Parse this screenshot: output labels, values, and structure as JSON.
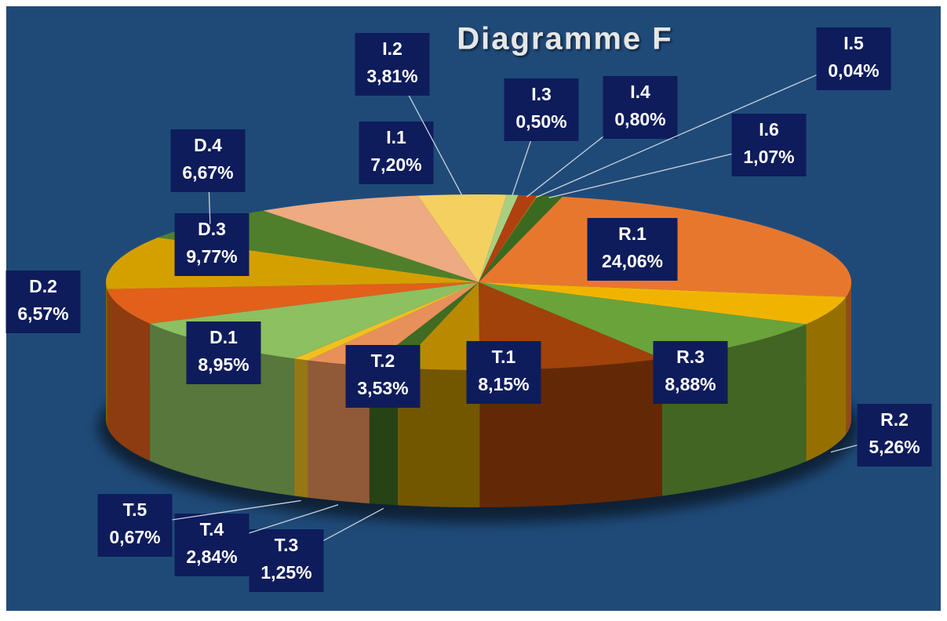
{
  "chart_data": {
    "type": "pie",
    "title": "Diagramme F",
    "categories": [
      "R.1",
      "R.2",
      "R.3",
      "T.1",
      "T.2",
      "T.3",
      "T.4",
      "T.5",
      "D.1",
      "D.2",
      "D.3",
      "D.4",
      "I.1",
      "I.2",
      "I.3",
      "I.4",
      "I.5",
      "I.6"
    ],
    "values": [
      24.06,
      5.26,
      8.88,
      8.15,
      3.53,
      1.25,
      2.84,
      0.67,
      8.95,
      6.57,
      9.77,
      6.67,
      7.2,
      3.81,
      0.5,
      0.8,
      0.04,
      1.07
    ],
    "value_labels": [
      "24,06%",
      "5,26%",
      "8,88%",
      "8,15%",
      "3,53%",
      "1,25%",
      "2,84%",
      "0,67%",
      "8,95%",
      "6,57%",
      "9,77%",
      "6,67%",
      "7,20%",
      "3,81%",
      "0,50%",
      "0,80%",
      "0,04%",
      "1,07%"
    ],
    "colors": [
      "#e8772e",
      "#f0b400",
      "#6aa33a",
      "#a0420a",
      "#b98a00",
      "#3f6b22",
      "#e8905a",
      "#f0c020",
      "#8cc060",
      "#e2601a",
      "#d4a000",
      "#4f7f2a",
      "#eeaa80",
      "#f4d060",
      "#a8d080",
      "#b04010",
      "#c09000",
      "#3a6a20"
    ]
  }
}
